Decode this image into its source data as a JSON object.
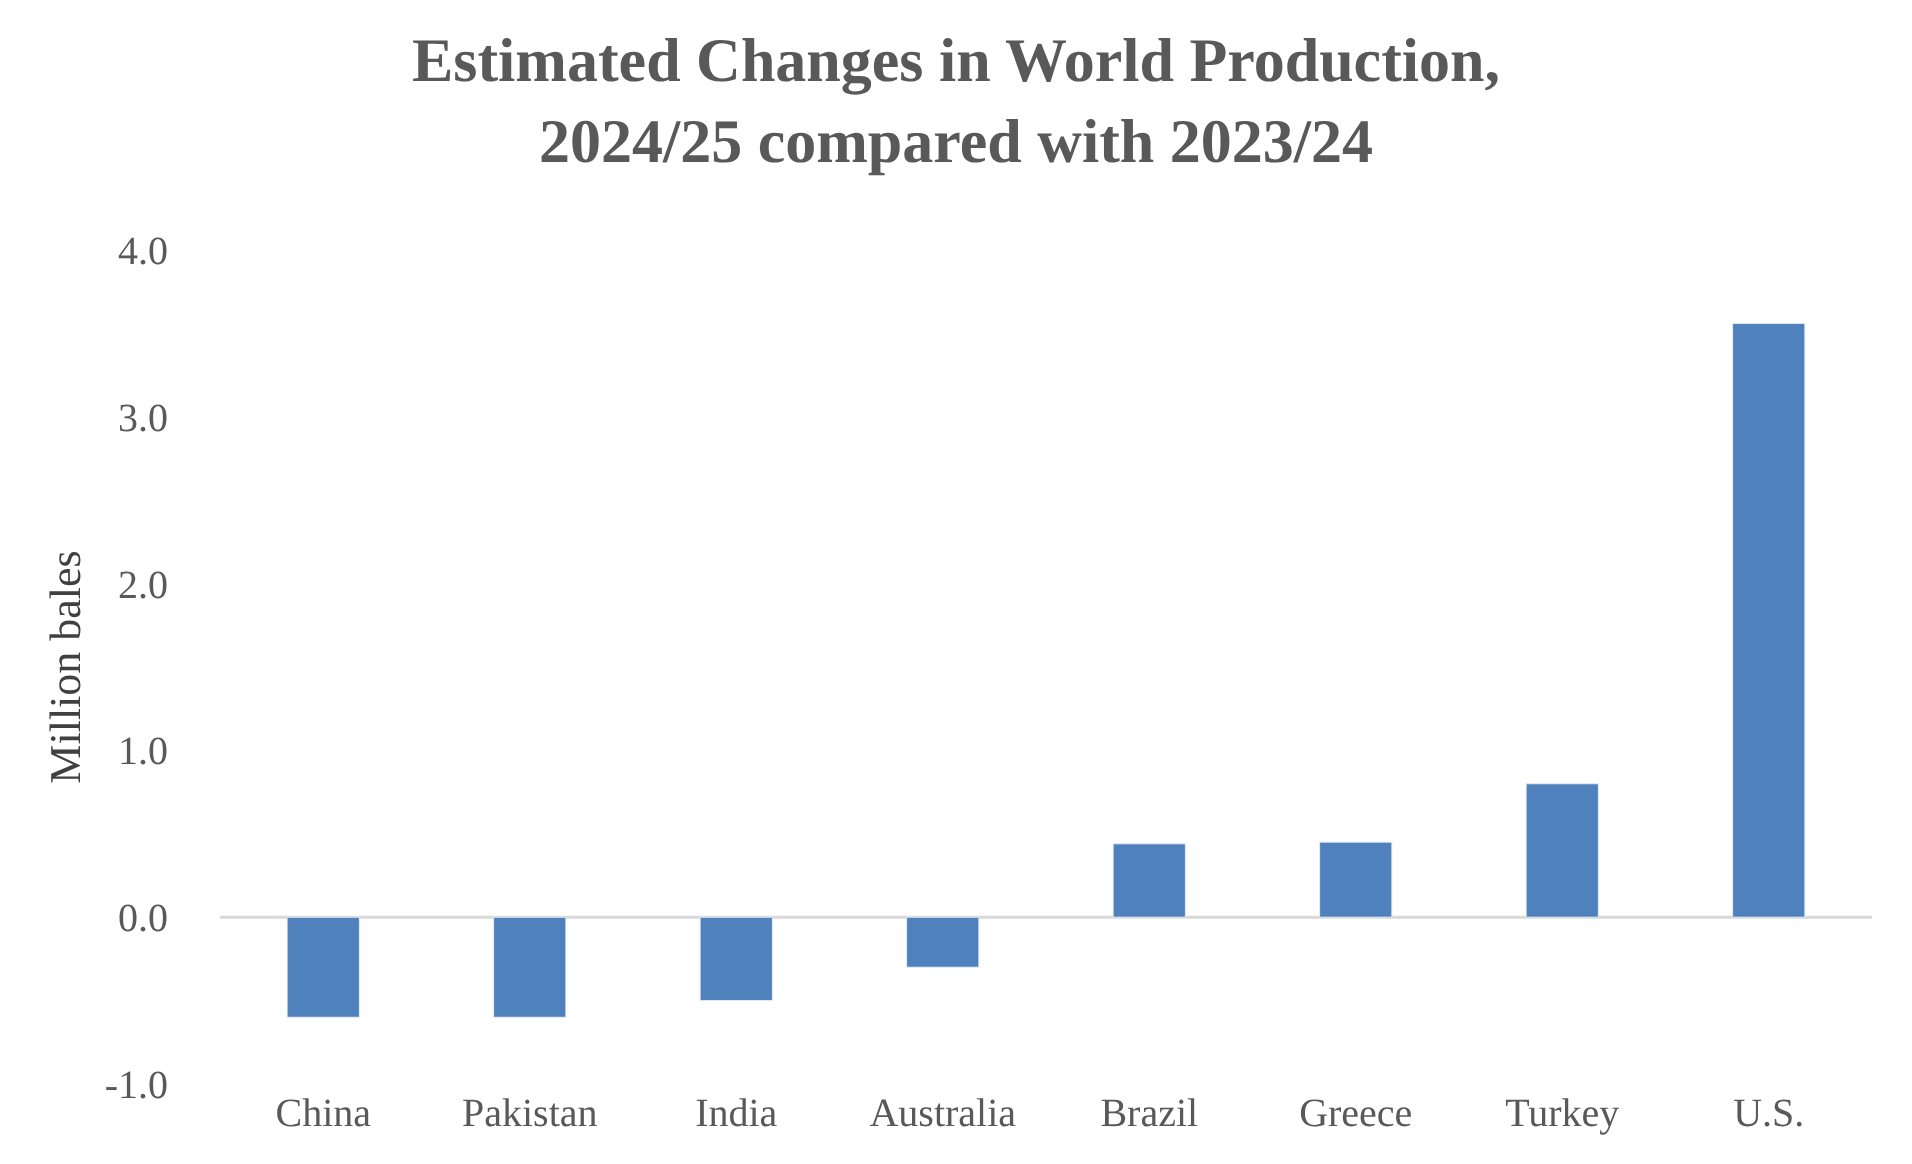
{
  "chart_data": {
    "type": "bar",
    "title": "Estimated Changes in World Production,\n2024/25 compared with 2023/24",
    "ylabel": "Million bales",
    "categories": [
      "China",
      "Pakistan",
      "India",
      "Australia",
      "Brazil",
      "Greece",
      "Turkey",
      "U.S."
    ],
    "values": [
      -0.6,
      -0.6,
      -0.5,
      -0.3,
      0.44,
      0.45,
      0.8,
      3.56
    ],
    "color": "#4f81bd",
    "ylim": [
      -1.0,
      4.0
    ],
    "yticks": [
      {
        "value": -1,
        "label": "-1.0"
      },
      {
        "value": 0,
        "label": "0.0"
      },
      {
        "value": 1,
        "label": "1.0"
      },
      {
        "value": 2,
        "label": "2.0"
      },
      {
        "value": 3,
        "label": "3.0"
      },
      {
        "value": 4,
        "label": "4.0"
      }
    ],
    "ref_lines": [
      {
        "axis": "y",
        "value": 0,
        "color": "#d9d9d9"
      }
    ],
    "grid": false,
    "legend": false
  }
}
